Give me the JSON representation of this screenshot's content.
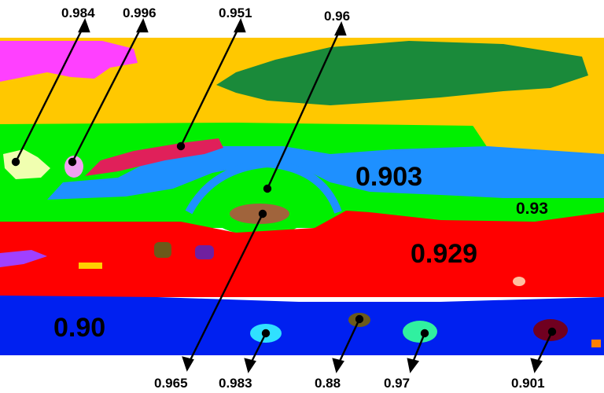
{
  "figure": {
    "callouts_top": [
      {
        "value": "0.984"
      },
      {
        "value": "0.996"
      },
      {
        "value": "0.951"
      },
      {
        "value": "0.96"
      }
    ],
    "callouts_bottom": [
      {
        "value": "0.965"
      },
      {
        "value": "0.983"
      },
      {
        "value": "0.88"
      },
      {
        "value": "0.97"
      },
      {
        "value": "0.901"
      }
    ],
    "inline_labels": {
      "blue_band": "0.903",
      "green_right": "0.93",
      "red_band": "0.929",
      "bottom_blue": "0.90"
    },
    "colors": {
      "yellow": "#ffc800",
      "dark_green": "#1a8a3a",
      "green": "#00f000",
      "blue_band": "#1e90ff",
      "red": "#ff0000",
      "bottom_blue": "#0020f0",
      "magenta": "#ff40ff",
      "crimson": "#e0205a",
      "brown": "#a0643c"
    }
  }
}
